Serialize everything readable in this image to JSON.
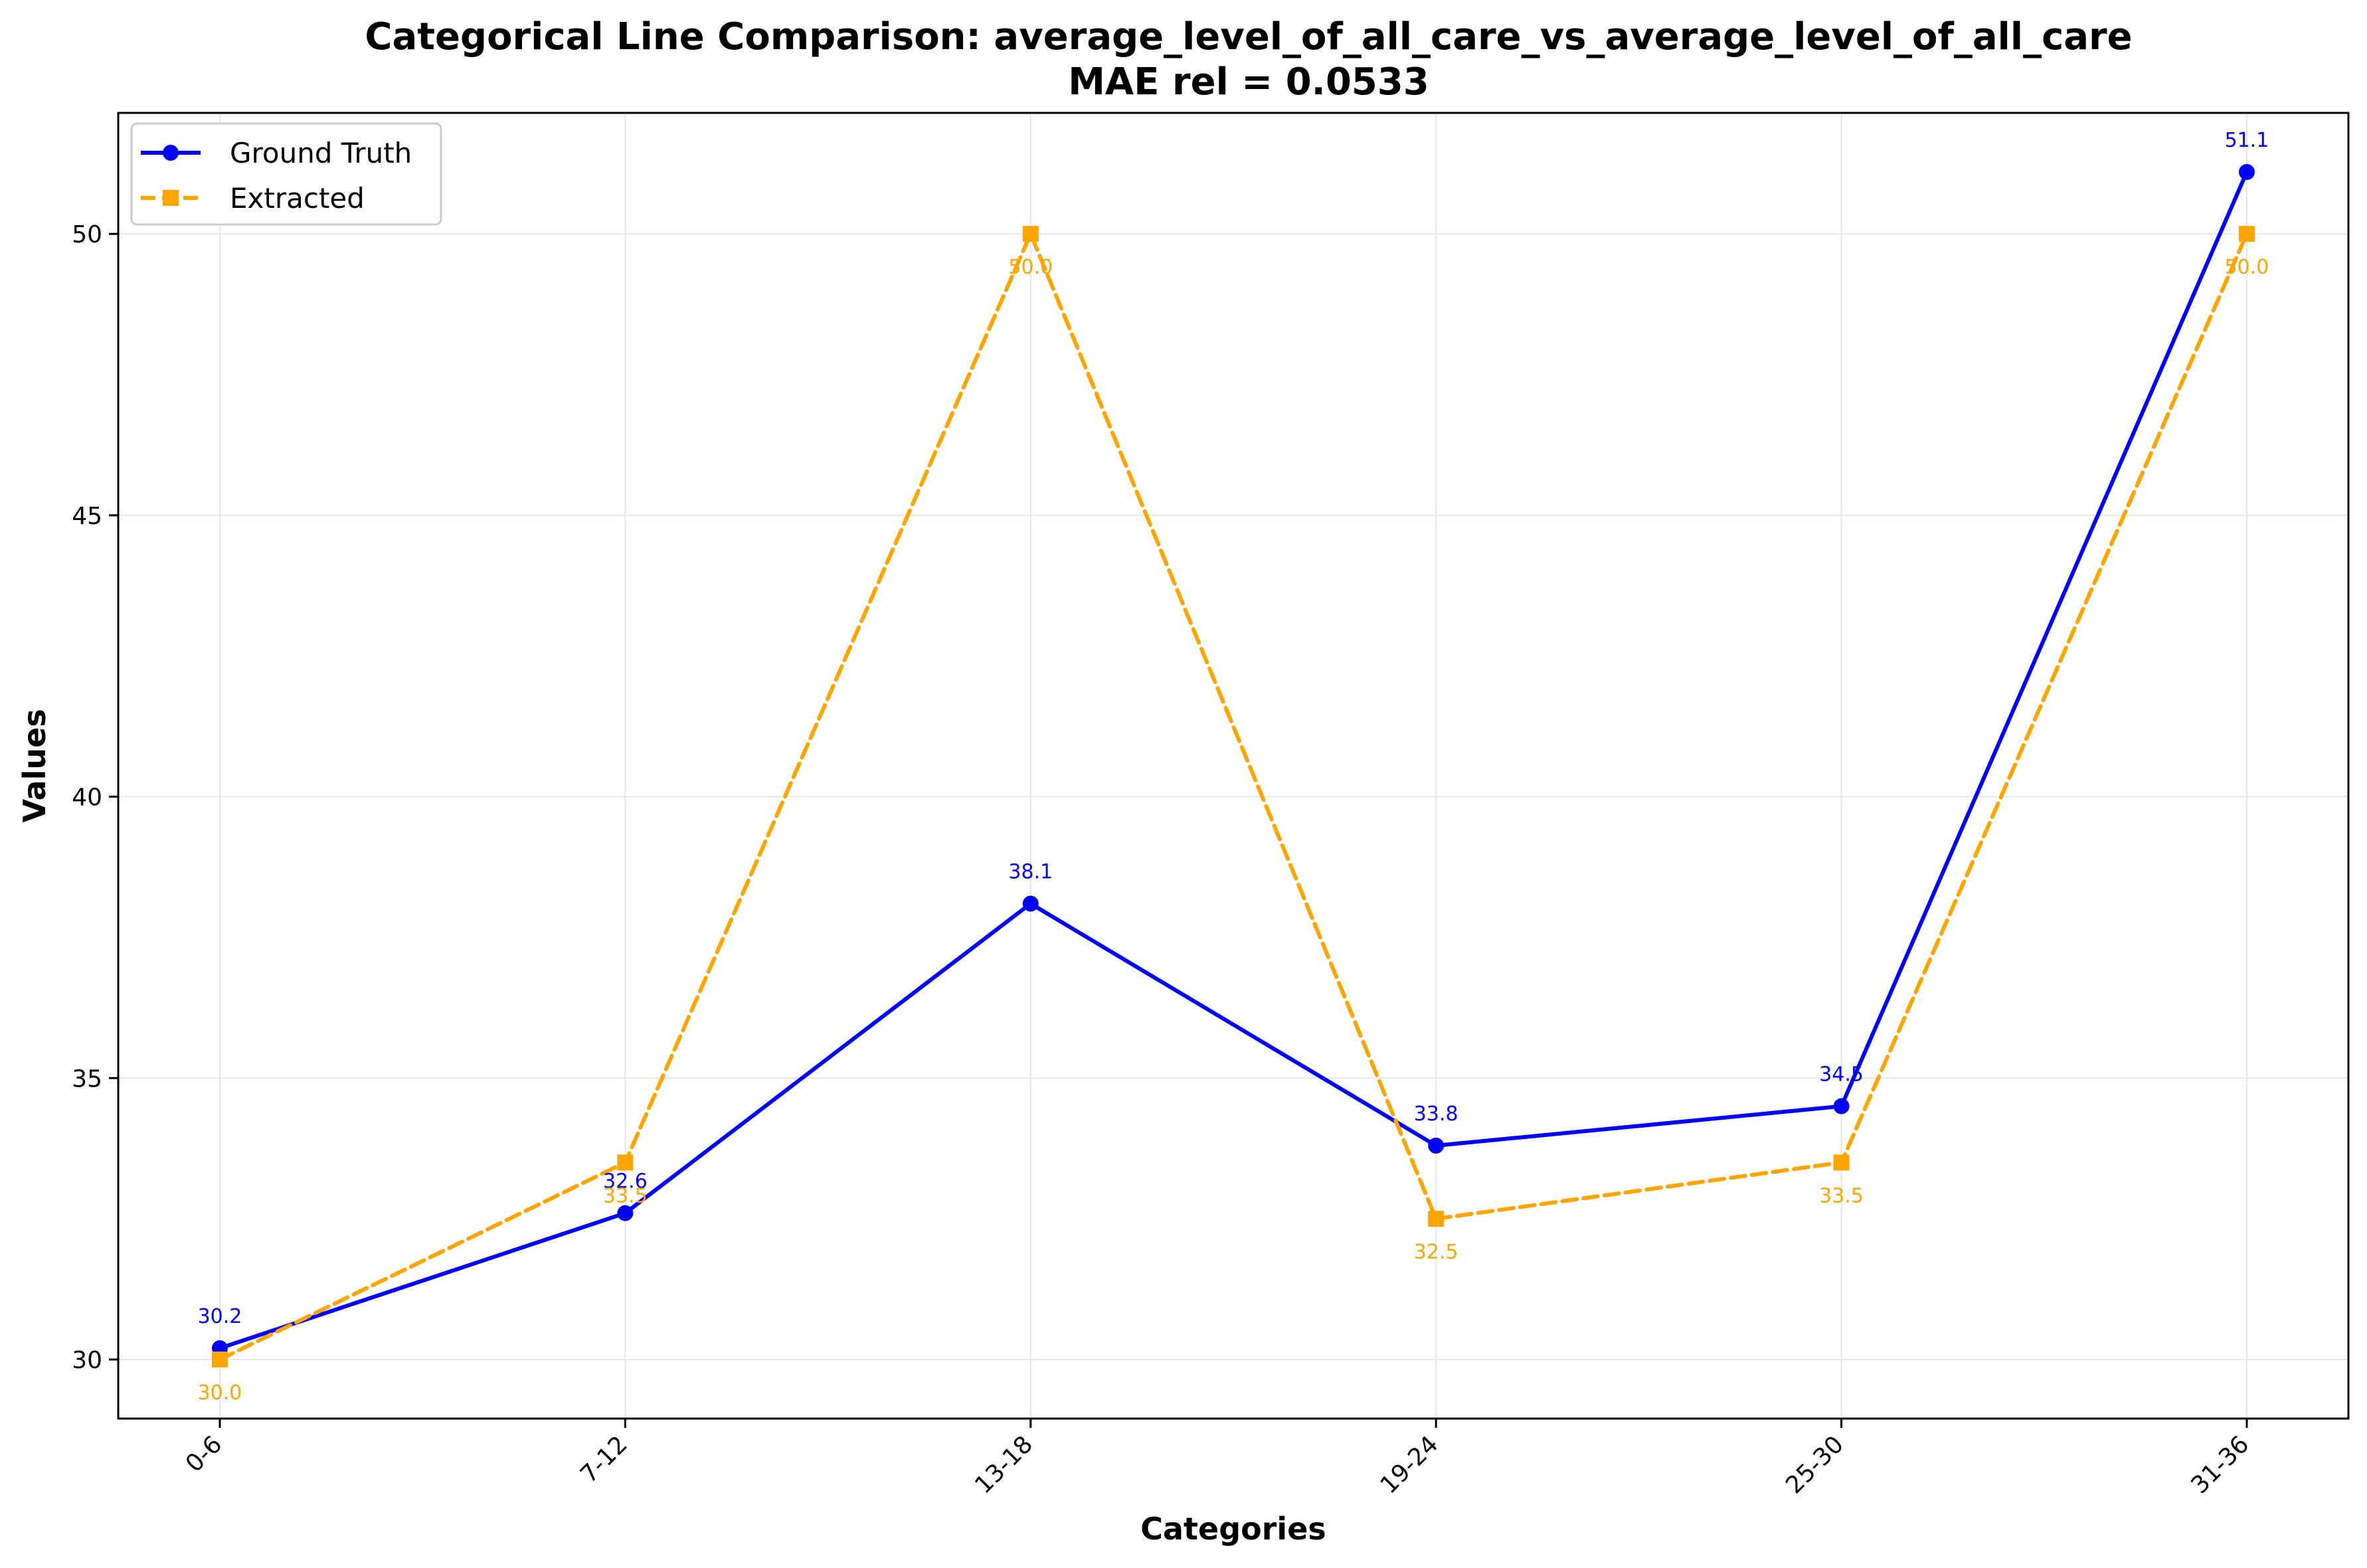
{
  "chart_data": {
    "type": "line",
    "title": "Categorical Line Comparison: average_level_of_all_care_vs_average_level_of_all_care",
    "subtitle": "MAE rel = 0.0533",
    "xlabel": "Categories",
    "ylabel": "Values",
    "categories": [
      "0-6",
      "7-12",
      "13-18",
      "19-24",
      "25-30",
      "31-36"
    ],
    "ylim": [
      28.95,
      52.15
    ],
    "yticks": [
      30,
      35,
      40,
      45,
      50
    ],
    "grid": true,
    "legend_position": "upper-left",
    "series": [
      {
        "name": "Ground Truth",
        "color": "#0000ff",
        "marker": "circle",
        "linestyle": "solid",
        "values": [
          30.2,
          32.6,
          38.1,
          33.8,
          34.5,
          51.1
        ],
        "labels": [
          "30.2",
          "32.6",
          "38.1",
          "33.8",
          "34.5",
          "51.1"
        ]
      },
      {
        "name": "Extracted",
        "color": "#ffa500",
        "marker": "square",
        "linestyle": "dashed",
        "values": [
          30.0,
          33.5,
          50.0,
          32.5,
          33.5,
          50.0
        ],
        "labels": [
          "30.0",
          "33.5",
          "50.0",
          "32.5",
          "33.5",
          "50.0"
        ]
      }
    ]
  }
}
